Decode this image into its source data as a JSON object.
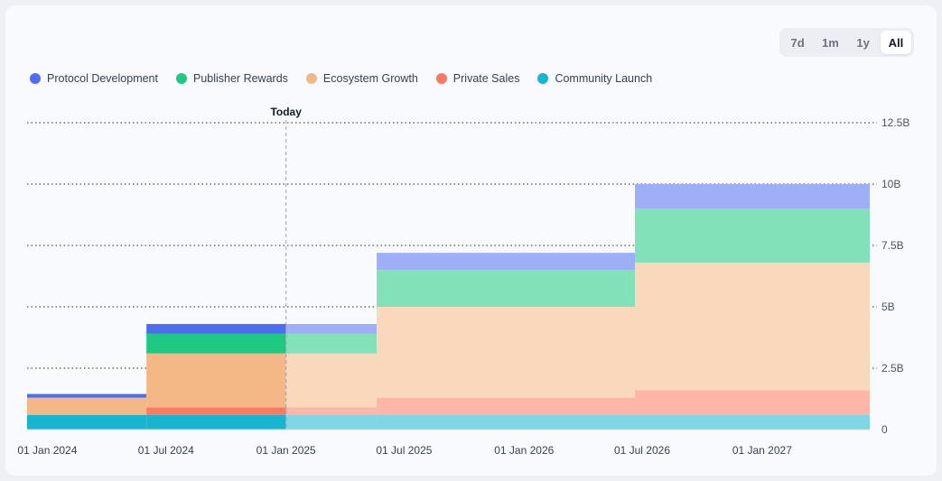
{
  "range_selector": {
    "options": [
      "7d",
      "1m",
      "1y",
      "All"
    ],
    "selected": "All"
  },
  "legend": [
    {
      "label": "Protocol Development",
      "color": "#4e6ef2"
    },
    {
      "label": "Publisher Rewards",
      "color": "#1ec981"
    },
    {
      "label": "Ecosystem Growth",
      "color": "#f4b886"
    },
    {
      "label": "Private Sales",
      "color": "#fb7a61"
    },
    {
      "label": "Community Launch",
      "color": "#17b5cf"
    }
  ],
  "chart_data": {
    "type": "area",
    "stacked": true,
    "step": true,
    "x_start": "2023-12-01",
    "x_end": "2027-06-15",
    "x_ticks": [
      {
        "date": "2024-01-01",
        "label": "01 Jan 2024"
      },
      {
        "date": "2024-07-01",
        "label": "01 Jul 2024"
      },
      {
        "date": "2025-01-01",
        "label": "01 Jan 2025"
      },
      {
        "date": "2025-07-01",
        "label": "01 Jul 2025"
      },
      {
        "date": "2026-01-01",
        "label": "01 Jan 2026"
      },
      {
        "date": "2026-07-01",
        "label": "01 Jul 2026"
      },
      {
        "date": "2027-01-01",
        "label": "01 Jan 2027"
      }
    ],
    "y_ticks": [
      {
        "value": 0,
        "label": "0"
      },
      {
        "value": 2.5,
        "label": "2.5B"
      },
      {
        "value": 5,
        "label": "5B"
      },
      {
        "value": 7.5,
        "label": "7.5B"
      },
      {
        "value": 10,
        "label": "10B"
      },
      {
        "value": 12.5,
        "label": "12.5B"
      }
    ],
    "ylim": [
      0,
      12.5
    ],
    "today": {
      "date": "2025-01-01",
      "label": "Today"
    },
    "periods": [
      "2023-12-01",
      "2024-06-01",
      "2025-01-01",
      "2025-05-20",
      "2026-06-20",
      "2027-06-15"
    ],
    "series": [
      {
        "name": "Community Launch",
        "color": "#17b5cf",
        "values": [
          0.6,
          0.6,
          0.6,
          0.6,
          0.6
        ]
      },
      {
        "name": "Private Sales",
        "color": "#fb7a61",
        "values": [
          0,
          0.3,
          0.3,
          0.7,
          1.0
        ]
      },
      {
        "name": "Ecosystem Growth",
        "color": "#f4b886",
        "values": [
          0.7,
          2.2,
          2.2,
          3.7,
          5.2
        ]
      },
      {
        "name": "Publisher Rewards",
        "color": "#1ec981",
        "values": [
          0,
          0.8,
          0.8,
          1.5,
          2.2
        ]
      },
      {
        "name": "Protocol Development",
        "color": "#4e6ef2",
        "values": [
          0.15,
          0.4,
          0.4,
          0.7,
          1.0
        ]
      }
    ]
  }
}
